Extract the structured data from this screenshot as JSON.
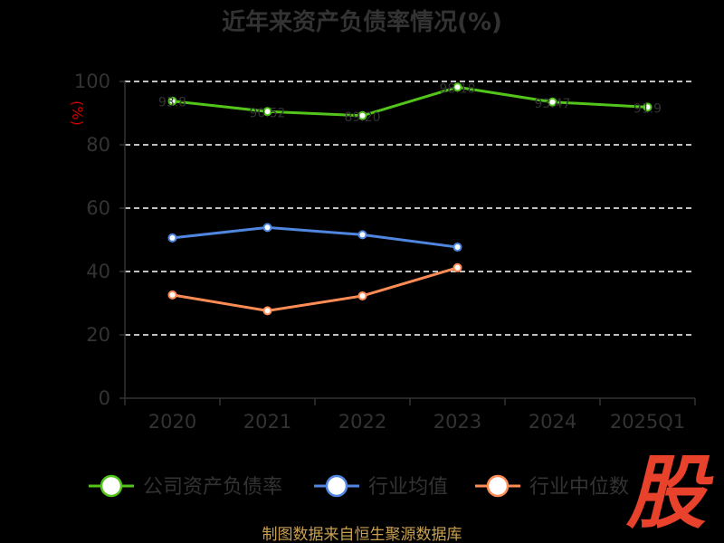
{
  "chart_data": {
    "type": "line",
    "title": "近年来资产负债率情况(%)",
    "ylabel": "(%)",
    "xlabel": "",
    "ylim": [
      0,
      100
    ],
    "yticks": [
      0,
      20,
      40,
      60,
      80,
      100
    ],
    "categories": [
      "2020",
      "2021",
      "2022",
      "2023",
      "2024",
      "2025Q1"
    ],
    "grid": true,
    "legend_position": "bottom",
    "series": [
      {
        "name": "公司资产负债率",
        "color": "#52c41a",
        "values": [
          93.8,
          90.5,
          89.2,
          98.2,
          93.5,
          91.9
        ],
        "labels": [
          "93.8",
          "90.52",
          "89.20",
          "98.18",
          "93.47",
          "91.9"
        ]
      },
      {
        "name": "行业均值",
        "color": "#4f86e0",
        "values": [
          50.6,
          53.9,
          51.6,
          47.7,
          null,
          null
        ],
        "labels": []
      },
      {
        "name": "行业中位数",
        "color": "#ff8c55",
        "values": [
          32.6,
          27.6,
          32.3,
          41.2,
          null,
          null
        ],
        "labels": []
      }
    ]
  },
  "source_text": "制图数据来自恒生聚源数据库",
  "logo_text": "股"
}
